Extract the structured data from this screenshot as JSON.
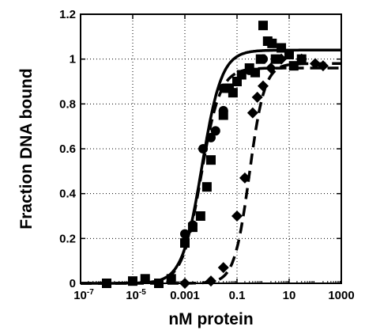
{
  "chart_data": {
    "type": "scatter",
    "xlabel": "nM protein",
    "ylabel": "Fraction DNA bound",
    "xscale": "log",
    "xlim": [
      1e-07,
      1000
    ],
    "ylim": [
      0,
      1.2
    ],
    "x_ticks": [
      {
        "value": 1e-07,
        "base": "10",
        "exp": "-7"
      },
      {
        "value": 1e-05,
        "base": "10",
        "exp": "-5"
      },
      {
        "value": 0.001,
        "text": "0.001"
      },
      {
        "value": 0.1,
        "text": "0.1"
      },
      {
        "value": 10,
        "text": "10"
      },
      {
        "value": 1000,
        "text": "1000"
      }
    ],
    "y_ticks": [
      0,
      0.2,
      0.4,
      0.6,
      0.8,
      1,
      1.2
    ],
    "y_tick_labels": [
      "0",
      "0.2",
      "0.4",
      "0.6",
      "0.8",
      "1",
      "1.2"
    ],
    "grid": "dotted",
    "legend": "none",
    "series": [
      {
        "marker": "square",
        "color": "#000000",
        "points": [
          [
            1e-06,
            0.0
          ],
          [
            1e-05,
            0.01
          ],
          [
            3e-05,
            0.02
          ],
          [
            0.0001,
            0.0
          ],
          [
            0.0003,
            0.02
          ],
          [
            0.001,
            0.18
          ],
          [
            0.002,
            0.25
          ],
          [
            0.004,
            0.3
          ],
          [
            0.007,
            0.43
          ],
          [
            0.01,
            0.55
          ],
          [
            0.03,
            0.75
          ],
          [
            0.05,
            0.87
          ],
          [
            0.07,
            0.85
          ],
          [
            0.1,
            0.9
          ],
          [
            0.15,
            0.93
          ],
          [
            0.3,
            0.96
          ],
          [
            0.5,
            0.94
          ],
          [
            0.8,
            1.0
          ],
          [
            1.0,
            1.15
          ],
          [
            1.5,
            1.08
          ],
          [
            2.2,
            1.07
          ],
          [
            3.0,
            1.0
          ],
          [
            5.0,
            1.05
          ],
          [
            10,
            1.02
          ],
          [
            15,
            0.97
          ],
          [
            30,
            1.0
          ]
        ]
      },
      {
        "marker": "circle",
        "color": "#000000",
        "points": [
          [
            0.001,
            0.22
          ],
          [
            0.002,
            0.26
          ],
          [
            0.005,
            0.6
          ],
          [
            0.01,
            0.65
          ],
          [
            0.015,
            0.68
          ],
          [
            0.03,
            0.77
          ],
          [
            0.03,
            0.87
          ],
          [
            0.1,
            0.9
          ],
          [
            0.3,
            0.95
          ],
          [
            1.0,
            1.0
          ]
        ]
      },
      {
        "marker": "diamond",
        "color": "#000000",
        "points": [
          [
            0.001,
            0.0
          ],
          [
            0.01,
            0.01
          ],
          [
            0.03,
            0.07
          ],
          [
            0.1,
            0.3
          ],
          [
            0.2,
            0.47
          ],
          [
            0.4,
            0.76
          ],
          [
            0.6,
            0.83
          ],
          [
            1.0,
            0.88
          ],
          [
            2.0,
            0.96
          ],
          [
            5.0,
            1.0
          ],
          [
            30,
            1.0
          ],
          [
            100,
            0.98
          ],
          [
            200,
            0.97
          ]
        ]
      }
    ],
    "fits": [
      {
        "style": "solid",
        "top": 1.04,
        "kd": 0.0045,
        "hill": 1.15
      },
      {
        "style": "dashed",
        "top": 0.96,
        "kd": 0.0042,
        "hill": 1.2
      },
      {
        "style": "dashed",
        "top": 0.98,
        "kd": 0.3,
        "hill": 1.5
      }
    ]
  }
}
